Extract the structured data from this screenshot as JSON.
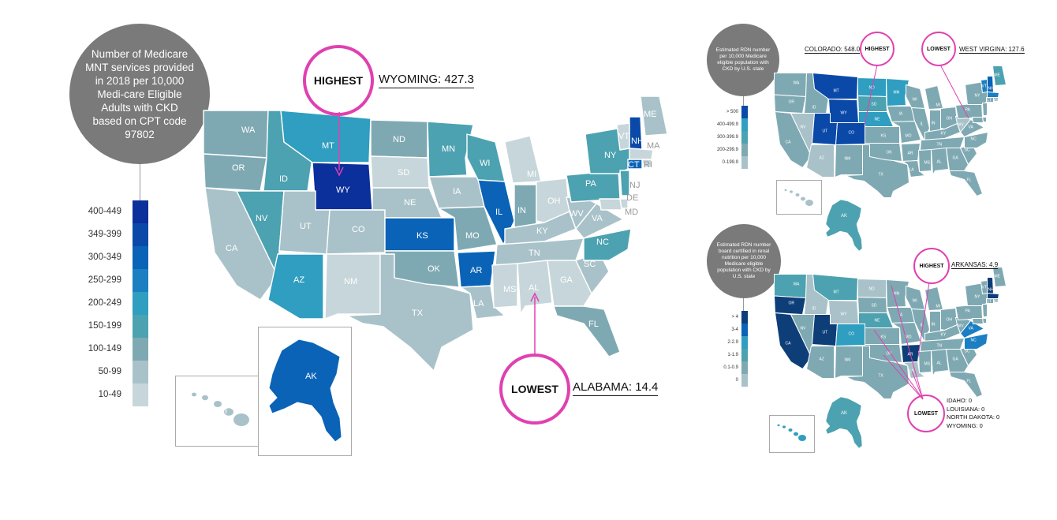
{
  "colors": {
    "c0": "#c7d6da",
    "c1": "#a9c2c9",
    "c2": "#7fa9b2",
    "c3": "#4ca2b0",
    "c4": "#2f9ec0",
    "c5": "#1b7fc2",
    "c6": "#0a63b6",
    "c7": "#0a49a8",
    "c8": "#0b2f9b",
    "pink": "#e040b0",
    "grey": "#7a7a7a",
    "mid": "#5ba5b3",
    "dark": "#0d3e78"
  },
  "main": {
    "title": "Number of Medicare MNT services provided in 2018 per 10,000 Medi-care Eligible Adults with CKD based on CPT code 97802",
    "legend": [
      "400-449",
      "349-399",
      "300-349",
      "250-299",
      "200-249",
      "150-199",
      "100-149",
      "50-99",
      "10-49"
    ],
    "highest_label": "HIGHEST",
    "highest_text": "WYOMING: 427.3",
    "lowest_label": "LOWEST",
    "lowest_text": "ALABAMA: 14.4",
    "states": [
      {
        "abbr": "WA",
        "color": "c2"
      },
      {
        "abbr": "OR",
        "color": "c2"
      },
      {
        "abbr": "CA",
        "color": "c1"
      },
      {
        "abbr": "ID",
        "color": "c3"
      },
      {
        "abbr": "NV",
        "color": "c3"
      },
      {
        "abbr": "AZ",
        "color": "c4"
      },
      {
        "abbr": "MT",
        "color": "c4"
      },
      {
        "abbr": "WY",
        "color": "c8"
      },
      {
        "abbr": "UT",
        "color": "c1"
      },
      {
        "abbr": "CO",
        "color": "c1"
      },
      {
        "abbr": "NM",
        "color": "c0"
      },
      {
        "abbr": "TX",
        "color": "c1"
      },
      {
        "abbr": "ND",
        "color": "c2"
      },
      {
        "abbr": "SD",
        "color": "c0"
      },
      {
        "abbr": "NE",
        "color": "c1"
      },
      {
        "abbr": "KS",
        "color": "c6"
      },
      {
        "abbr": "OK",
        "color": "c2"
      },
      {
        "abbr": "MN",
        "color": "c3"
      },
      {
        "abbr": "IA",
        "color": "c1"
      },
      {
        "abbr": "MO",
        "color": "c2"
      },
      {
        "abbr": "AR",
        "color": "c6"
      },
      {
        "abbr": "LA",
        "color": "c1"
      },
      {
        "abbr": "WI",
        "color": "c3"
      },
      {
        "abbr": "IL",
        "color": "c6"
      },
      {
        "abbr": "MI",
        "color": "c0"
      },
      {
        "abbr": "IN",
        "color": "c2"
      },
      {
        "abbr": "OH",
        "color": "c0"
      },
      {
        "abbr": "KY",
        "color": "c1"
      },
      {
        "abbr": "TN",
        "color": "c1"
      },
      {
        "abbr": "MS",
        "color": "c0"
      },
      {
        "abbr": "AL",
        "color": "c0"
      },
      {
        "abbr": "GA",
        "color": "c0"
      },
      {
        "abbr": "FL",
        "color": "c2"
      },
      {
        "abbr": "SC",
        "color": "c1"
      },
      {
        "abbr": "NC",
        "color": "c3"
      },
      {
        "abbr": "VA",
        "color": "c1"
      },
      {
        "abbr": "WV",
        "color": "c1"
      },
      {
        "abbr": "PA",
        "color": "c3"
      },
      {
        "abbr": "NY",
        "color": "c3"
      },
      {
        "abbr": "ME",
        "color": "c1"
      },
      {
        "abbr": "NH",
        "color": "c7"
      },
      {
        "abbr": "VT",
        "color": "c0"
      },
      {
        "abbr": "MA",
        "color": "c0"
      },
      {
        "abbr": "RI",
        "color": "c0"
      },
      {
        "abbr": "CT",
        "color": "c6"
      },
      {
        "abbr": "NJ",
        "color": "c3"
      },
      {
        "abbr": "DE",
        "color": "c0"
      },
      {
        "abbr": "MD",
        "color": "c0"
      },
      {
        "abbr": "AK",
        "color": "c6"
      },
      {
        "abbr": "HI",
        "color": "c1"
      }
    ]
  },
  "top_right": {
    "title": "Estimated RDN number per 10,000 Medicare eligible population with CKD by U.S. state",
    "legend": [
      "> 500",
      "400-499.9",
      "300-399.9",
      "200-299.9",
      "0-199.9"
    ],
    "highest_label": "HIGHEST",
    "highest_text": "COLORADO: 548.0",
    "lowest_label": "LOWEST",
    "lowest_text": "WEST VIRGINA: 127.6"
  },
  "bottom_right": {
    "title": "Estimated RDN number board certified in renal nutrition per 10,000 Medicare eligible population with CKD by U.S. state",
    "legend": [
      "> 4",
      "3-4",
      "2-2.9",
      "1-1.9",
      "0.1-0.9",
      "0"
    ],
    "highest_label": "HIGHEST",
    "highest_text": "ARKANSAS: 4.9",
    "lowest_label": "LOWEST",
    "lowest_list": [
      "IDAHO: 0",
      "LOUISIANA: 0",
      "NORTH DAKOTA: 0",
      "WYOMING: 0"
    ]
  }
}
